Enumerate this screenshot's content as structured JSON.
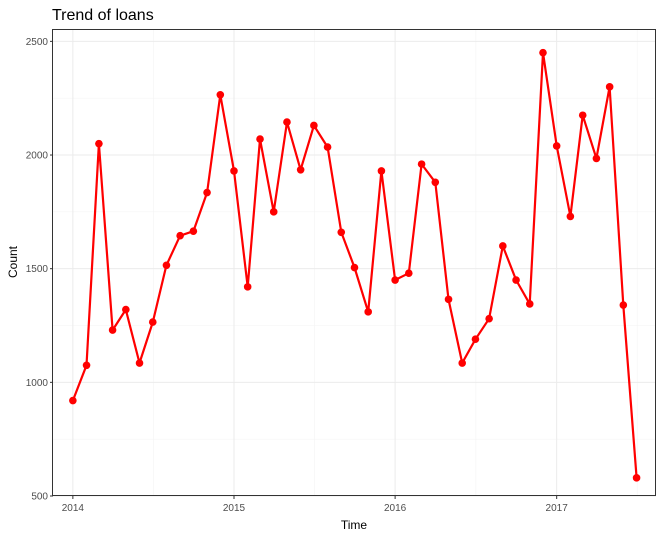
{
  "chart_data": {
    "type": "line",
    "title": "Trend of loans",
    "xlabel": "Time",
    "ylabel": "Count",
    "xlim": [
      "2013-11-17",
      "2017-08-14"
    ],
    "ylim": [
      500,
      2550
    ],
    "x_ticks": [
      "2014-01-01",
      "2015-01-01",
      "2016-01-01",
      "2017-01-01"
    ],
    "x_tick_labels": [
      "2014",
      "2015",
      "2016",
      "2017"
    ],
    "y_ticks": [
      500,
      1000,
      1500,
      2000,
      2500
    ],
    "y_tick_labels": [
      "500",
      "1000",
      "1500",
      "2000",
      "2500"
    ],
    "grid": true,
    "legend": "none",
    "color": "#ff0000",
    "x": [
      "2014-01",
      "2014-02",
      "2014-03",
      "2014-04",
      "2014-05",
      "2014-06",
      "2014-07",
      "2014-08",
      "2014-09",
      "2014-10",
      "2014-11",
      "2014-12",
      "2015-01",
      "2015-02",
      "2015-03",
      "2015-04",
      "2015-05",
      "2015-06",
      "2015-07",
      "2015-08",
      "2015-09",
      "2015-10",
      "2015-11",
      "2015-12",
      "2016-01",
      "2016-02",
      "2016-03",
      "2016-04",
      "2016-05",
      "2016-06",
      "2016-07",
      "2016-08",
      "2016-09",
      "2016-10",
      "2016-11",
      "2016-12",
      "2017-01",
      "2017-02",
      "2017-03",
      "2017-04",
      "2017-05",
      "2017-06",
      "2017-07"
    ],
    "values": [
      920,
      1075,
      2050,
      1230,
      1320,
      1085,
      1265,
      1515,
      1645,
      1665,
      1835,
      2265,
      1930,
      1420,
      2070,
      1750,
      2145,
      1935,
      2130,
      2035,
      1660,
      1505,
      1310,
      1930,
      1450,
      1480,
      1960,
      1880,
      1365,
      1085,
      1190,
      1280,
      1600,
      1450,
      1345,
      2450,
      2040,
      1730,
      2175,
      1985,
      2300,
      1340,
      580
    ]
  }
}
